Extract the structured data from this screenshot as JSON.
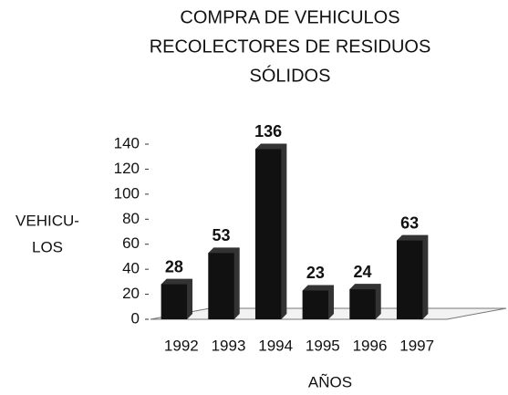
{
  "chart_data": {
    "type": "bar",
    "title": [
      "COMPRA DE VEHICULOS",
      "RECOLECTORES DE RESIDUOS",
      "SÓLIDOS"
    ],
    "y_label": [
      "VEHICU-",
      "LOS"
    ],
    "x_label": "AÑOS",
    "categories": [
      "1992",
      "1993",
      "1994",
      "1995",
      "1996",
      "1997"
    ],
    "values": [
      28,
      53,
      136,
      23,
      24,
      63
    ],
    "color": "#111111",
    "ylim": [
      0,
      140
    ],
    "yticks": [
      0,
      20,
      40,
      60,
      80,
      100,
      120,
      140
    ],
    "grid": false
  }
}
